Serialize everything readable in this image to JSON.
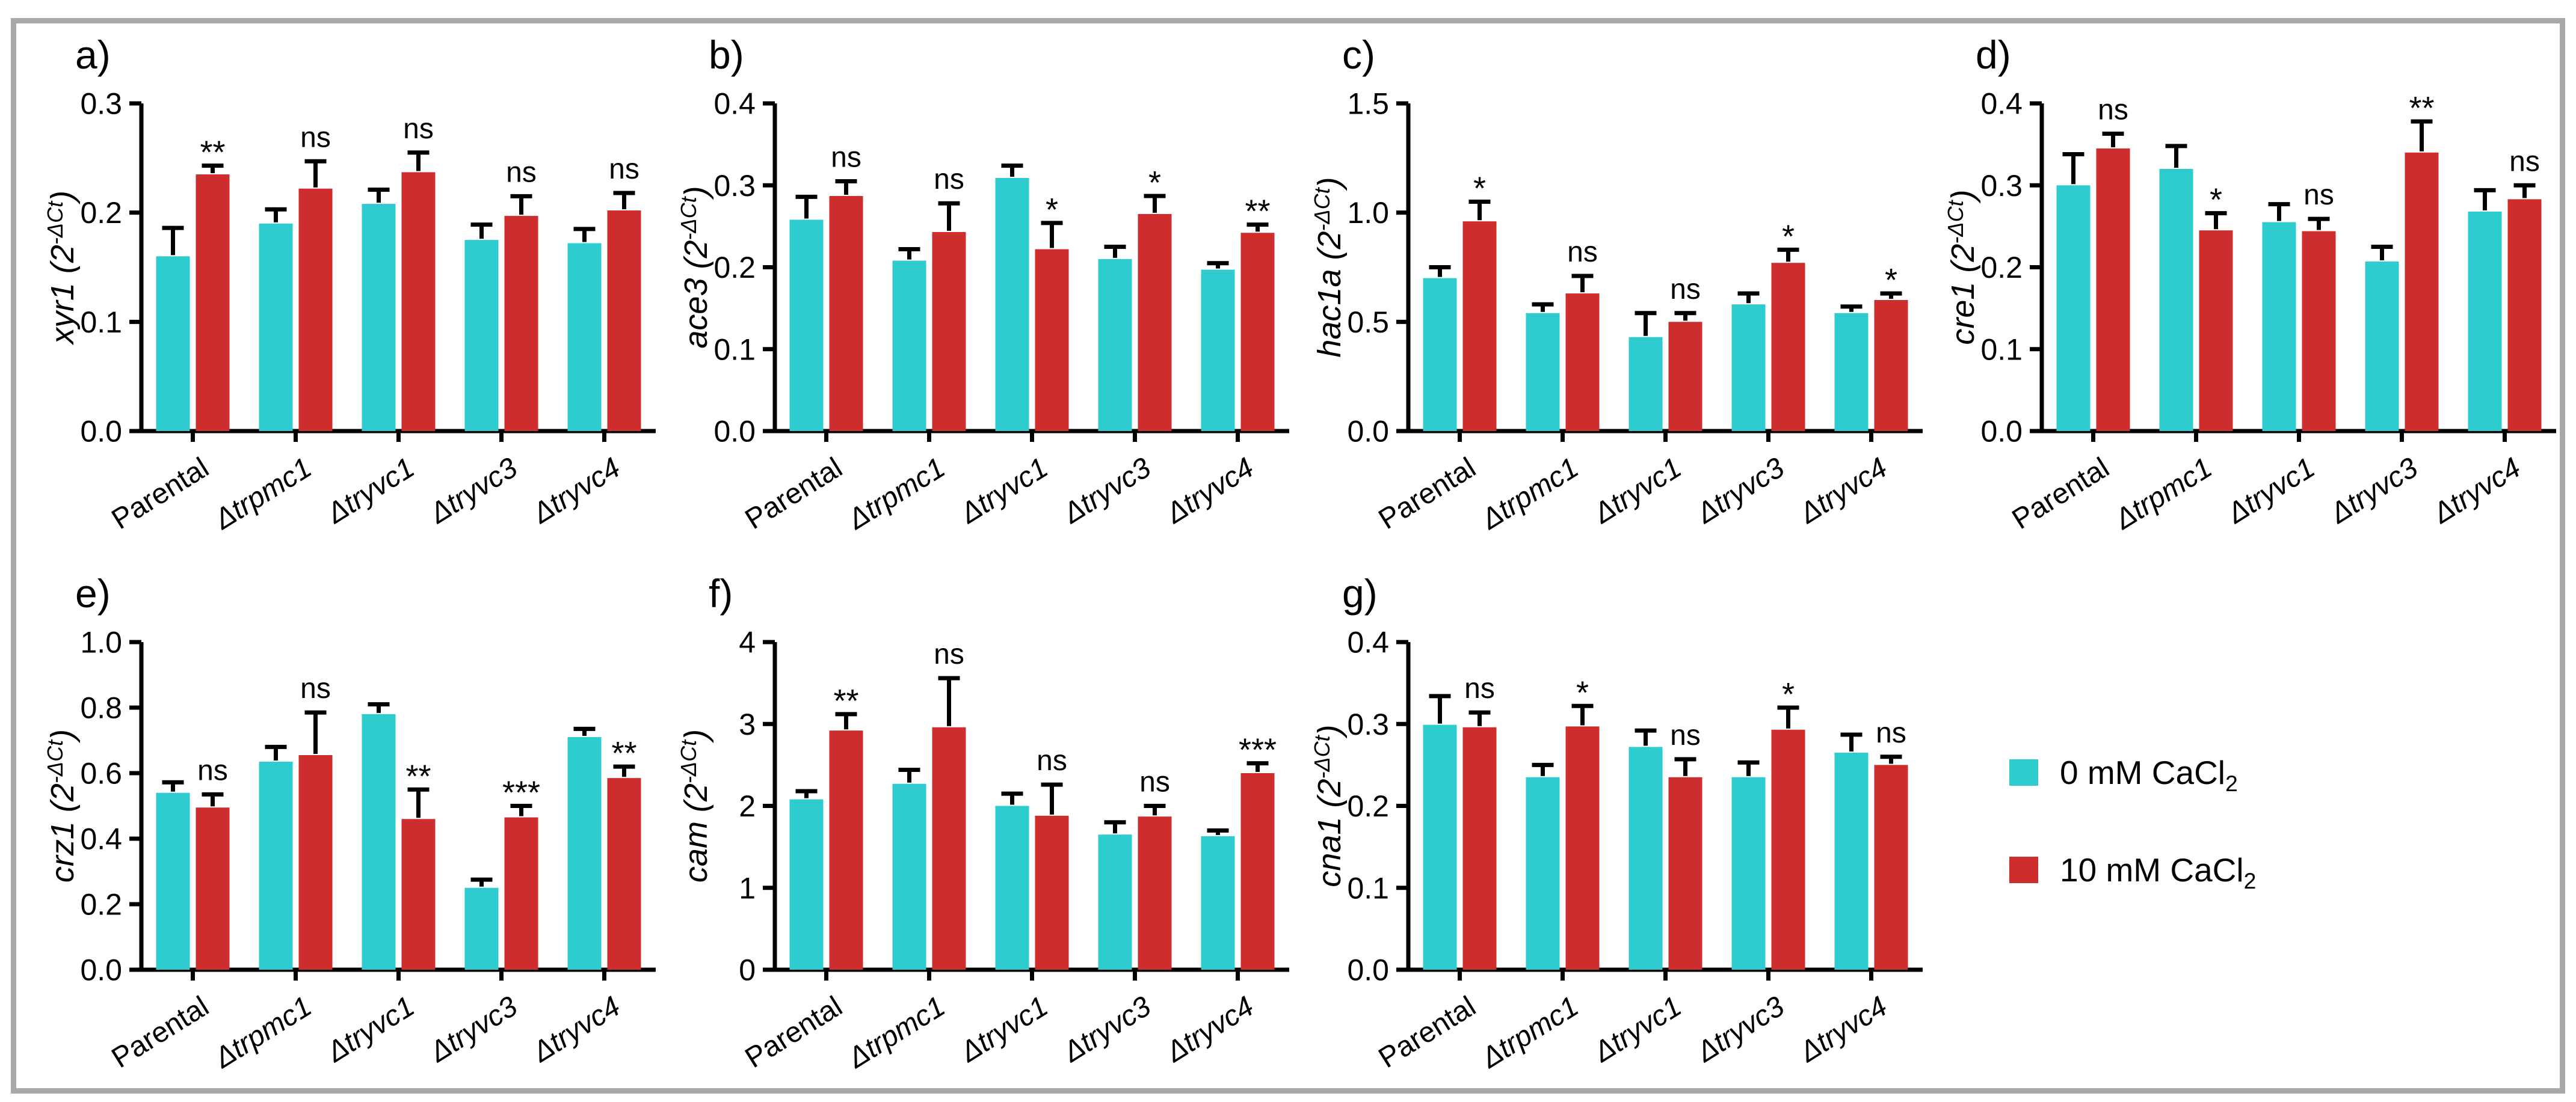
{
  "figure": {
    "description": "Relative transcript levels (2^-ΔCt) of seven genes in Trichoderma strains at 0 mM vs 10 mM CaCl2",
    "categories": [
      {
        "label": "Parental",
        "italic": false
      },
      {
        "label": "Δtrpmc1",
        "italic": true
      },
      {
        "label": "Δtryvc1",
        "italic": true
      },
      {
        "label": "Δtryvc3",
        "italic": true
      },
      {
        "label": "Δtryvc4",
        "italic": true
      }
    ]
  },
  "colors": {
    "control": "#2ECCCE",
    "treatment": "#CE2D2D",
    "axis": "#000000",
    "text": "#000000",
    "frame_border": "#a9a9a9",
    "background": "#ffffff"
  },
  "legend": {
    "items": [
      {
        "text": "0 mM CaCl",
        "sub": "2",
        "swatch": "control"
      },
      {
        "text": "10 mM CaCl",
        "sub": "2",
        "swatch": "treatment"
      }
    ]
  },
  "ylabel_format": {
    "prefix": " (2",
    "sup": "-ΔCt",
    "suffix": ")"
  },
  "chart_data": [
    {
      "type": "bar",
      "panel_label": "a)",
      "gene": "xyr1",
      "ylim": [
        0,
        0.3
      ],
      "ytick_values": [
        0,
        0.1,
        0.2,
        0.3
      ],
      "ytick_labels": [
        "0.0",
        "0.1",
        "0.2",
        "0.3"
      ],
      "series": [
        {
          "name": "0 mM CaCl2",
          "color_key": "control",
          "values": [
            0.16,
            0.19,
            0.208,
            0.175,
            0.172
          ],
          "errors": [
            0.026,
            0.013,
            0.013,
            0.014,
            0.013
          ]
        },
        {
          "name": "10 mM CaCl2",
          "color_key": "treatment",
          "values": [
            0.235,
            0.222,
            0.237,
            0.197,
            0.202
          ],
          "errors": [
            0.008,
            0.025,
            0.018,
            0.018,
            0.016
          ]
        }
      ],
      "significance": [
        "**",
        "ns",
        "ns",
        "ns",
        "ns"
      ]
    },
    {
      "type": "bar",
      "panel_label": "b)",
      "gene": "ace3",
      "ylim": [
        0,
        0.4
      ],
      "ytick_values": [
        0,
        0.1,
        0.2,
        0.3,
        0.4
      ],
      "ytick_labels": [
        "0.0",
        "0.1",
        "0.2",
        "0.3",
        "0.4"
      ],
      "series": [
        {
          "name": "0 mM CaCl2",
          "color_key": "control",
          "values": [
            0.258,
            0.208,
            0.309,
            0.21,
            0.197
          ],
          "errors": [
            0.028,
            0.014,
            0.015,
            0.015,
            0.008
          ]
        },
        {
          "name": "10 mM CaCl2",
          "color_key": "treatment",
          "values": [
            0.287,
            0.243,
            0.222,
            0.265,
            0.242
          ],
          "errors": [
            0.018,
            0.035,
            0.032,
            0.022,
            0.01
          ]
        }
      ],
      "significance": [
        "ns",
        "ns",
        "*",
        "*",
        "**"
      ]
    },
    {
      "type": "bar",
      "panel_label": "c)",
      "gene": "hac1a",
      "ylim": [
        0,
        1.5
      ],
      "ytick_values": [
        0,
        0.5,
        1.0,
        1.5
      ],
      "ytick_labels": [
        "0.0",
        "0.5",
        "1.0",
        "1.5"
      ],
      "series": [
        {
          "name": "0 mM CaCl2",
          "color_key": "control",
          "values": [
            0.7,
            0.54,
            0.43,
            0.58,
            0.54
          ],
          "errors": [
            0.05,
            0.04,
            0.11,
            0.05,
            0.03
          ]
        },
        {
          "name": "10 mM CaCl2",
          "color_key": "treatment",
          "values": [
            0.96,
            0.63,
            0.5,
            0.77,
            0.6
          ],
          "errors": [
            0.09,
            0.08,
            0.04,
            0.06,
            0.03
          ]
        }
      ],
      "significance": [
        "*",
        "ns",
        "ns",
        "*",
        "*"
      ]
    },
    {
      "type": "bar",
      "panel_label": "d)",
      "gene": "cre1",
      "ylim": [
        0,
        0.4
      ],
      "ytick_values": [
        0,
        0.1,
        0.2,
        0.3,
        0.4
      ],
      "ytick_labels": [
        "0.0",
        "0.1",
        "0.2",
        "0.3",
        "0.4"
      ],
      "series": [
        {
          "name": "0 mM CaCl2",
          "color_key": "control",
          "values": [
            0.3,
            0.32,
            0.255,
            0.207,
            0.268
          ],
          "errors": [
            0.038,
            0.028,
            0.022,
            0.018,
            0.026
          ]
        },
        {
          "name": "10 mM CaCl2",
          "color_key": "treatment",
          "values": [
            0.345,
            0.245,
            0.244,
            0.34,
            0.283
          ],
          "errors": [
            0.018,
            0.021,
            0.015,
            0.038,
            0.017
          ]
        }
      ],
      "significance": [
        "ns",
        "*",
        "ns",
        "**",
        "ns"
      ]
    },
    {
      "type": "bar",
      "panel_label": "e)",
      "gene": "crz1",
      "ylim": [
        0,
        1.0
      ],
      "ytick_values": [
        0,
        0.2,
        0.4,
        0.6,
        0.8,
        1.0
      ],
      "ytick_labels": [
        "0.0",
        "0.2",
        "0.4",
        "0.6",
        "0.8",
        "1.0"
      ],
      "series": [
        {
          "name": "0 mM CaCl2",
          "color_key": "control",
          "values": [
            0.54,
            0.635,
            0.78,
            0.25,
            0.71
          ],
          "errors": [
            0.032,
            0.045,
            0.03,
            0.025,
            0.025
          ]
        },
        {
          "name": "10 mM CaCl2",
          "color_key": "treatment",
          "values": [
            0.495,
            0.655,
            0.46,
            0.465,
            0.585
          ],
          "errors": [
            0.04,
            0.13,
            0.09,
            0.035,
            0.035
          ]
        }
      ],
      "significance": [
        "ns",
        "ns",
        "**",
        "***",
        "**"
      ]
    },
    {
      "type": "bar",
      "panel_label": "f)",
      "gene": "cam",
      "ylim": [
        0,
        4
      ],
      "ytick_values": [
        0,
        1,
        2,
        3,
        4
      ],
      "ytick_labels": [
        "0",
        "1",
        "2",
        "3",
        "4"
      ],
      "series": [
        {
          "name": "0 mM CaCl2",
          "color_key": "control",
          "values": [
            2.08,
            2.27,
            2.0,
            1.65,
            1.63
          ],
          "errors": [
            0.1,
            0.17,
            0.15,
            0.15,
            0.07
          ]
        },
        {
          "name": "10 mM CaCl2",
          "color_key": "treatment",
          "values": [
            2.92,
            2.96,
            1.88,
            1.87,
            2.4
          ],
          "errors": [
            0.2,
            0.6,
            0.38,
            0.13,
            0.12
          ]
        }
      ],
      "significance": [
        "**",
        "ns",
        "ns",
        "ns",
        "***"
      ]
    },
    {
      "type": "bar",
      "panel_label": "g)",
      "gene": "cna1",
      "ylim": [
        0,
        0.4
      ],
      "ytick_values": [
        0,
        0.1,
        0.2,
        0.3,
        0.4
      ],
      "ytick_labels": [
        "0.0",
        "0.1",
        "0.2",
        "0.3",
        "0.4"
      ],
      "series": [
        {
          "name": "0 mM CaCl2",
          "color_key": "control",
          "values": [
            0.299,
            0.235,
            0.272,
            0.235,
            0.265
          ],
          "errors": [
            0.035,
            0.015,
            0.02,
            0.018,
            0.022
          ]
        },
        {
          "name": "10 mM CaCl2",
          "color_key": "treatment",
          "values": [
            0.296,
            0.297,
            0.235,
            0.293,
            0.25
          ],
          "errors": [
            0.018,
            0.025,
            0.022,
            0.027,
            0.01
          ]
        }
      ],
      "significance": [
        "ns",
        "*",
        "ns",
        "*",
        "ns"
      ]
    }
  ]
}
